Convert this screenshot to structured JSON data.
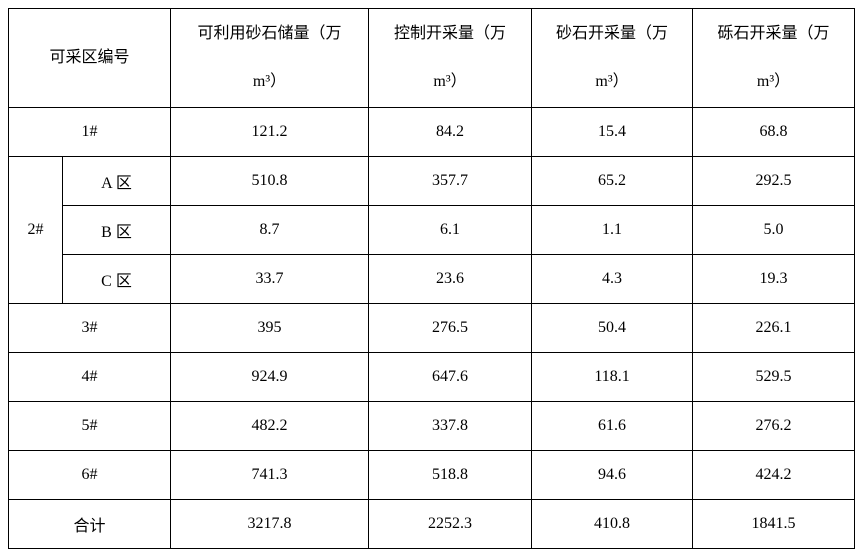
{
  "table": {
    "header": [
      "可采区编号",
      "可利用砂石储量（万m³）",
      "控制开采量（万m³）",
      "砂石开采量（万m³）",
      "砾石开采量（万m³）"
    ],
    "rows": [
      {
        "zone": "1#",
        "values": [
          "121.2",
          "84.2",
          "15.4",
          "68.8"
        ]
      },
      {
        "zone": "2#",
        "sub": [
          {
            "name": "A 区",
            "values": [
              "510.8",
              "357.7",
              "65.2",
              "292.5"
            ]
          },
          {
            "name": "B 区",
            "values": [
              "8.7",
              "6.1",
              "1.1",
              "5.0"
            ]
          },
          {
            "name": "C 区",
            "values": [
              "33.7",
              "23.6",
              "4.3",
              "19.3"
            ]
          }
        ]
      },
      {
        "zone": "3#",
        "values": [
          "395",
          "276.5",
          "50.4",
          "226.1"
        ]
      },
      {
        "zone": "4#",
        "values": [
          "924.9",
          "647.6",
          "118.1",
          "529.5"
        ]
      },
      {
        "zone": "5#",
        "values": [
          "482.2",
          "337.8",
          "61.6",
          "276.2"
        ]
      },
      {
        "zone": "6#",
        "values": [
          "741.3",
          "518.8",
          "94.6",
          "424.2"
        ]
      },
      {
        "zone": "合计",
        "values": [
          "3217.8",
          "2252.3",
          "410.8",
          "1841.5"
        ]
      }
    ]
  }
}
